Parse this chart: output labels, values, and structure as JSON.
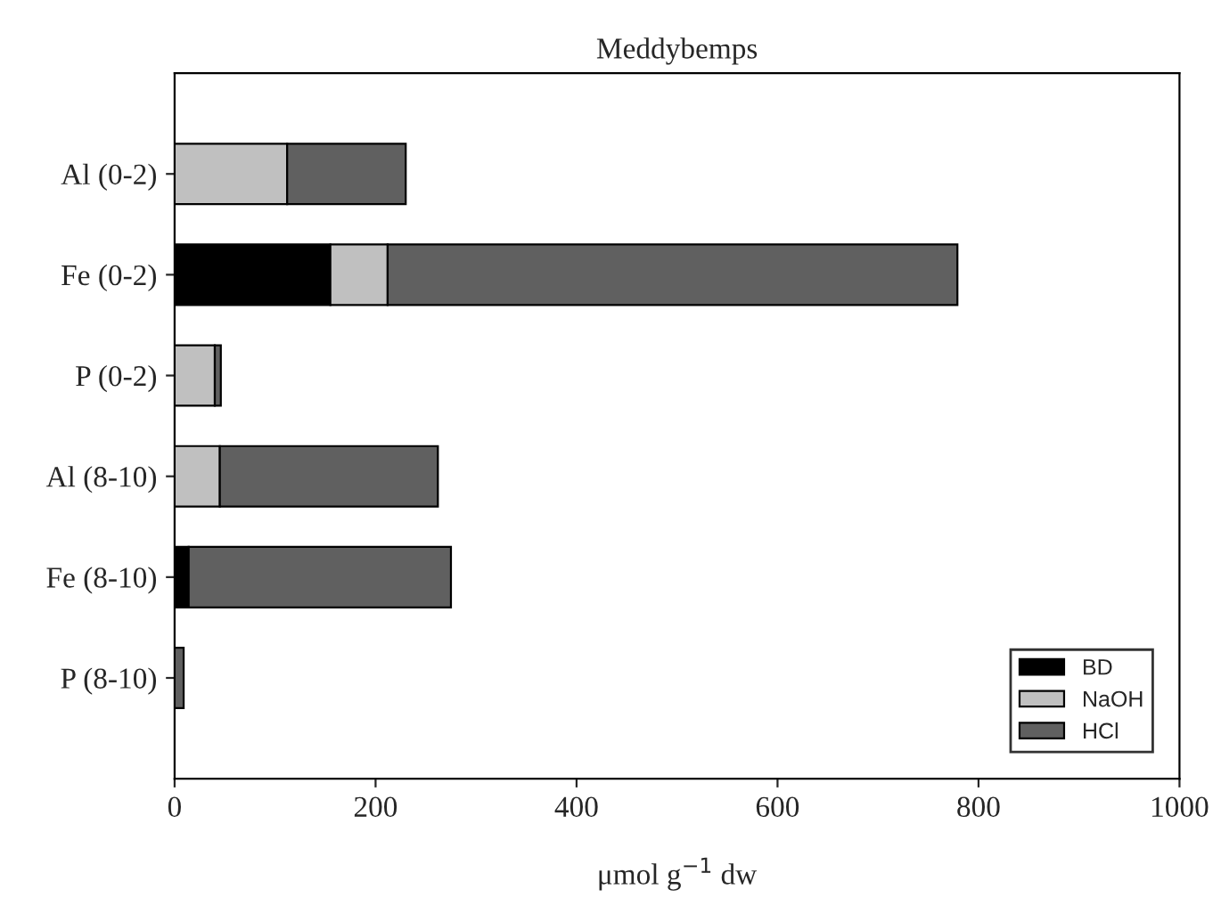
{
  "chart_data": {
    "type": "bar",
    "orientation": "horizontal",
    "stacked": true,
    "title": "Meddybemps",
    "xlabel": "μmol g$^{−1}$ dw",
    "categories": [
      "Al (0-2)",
      "Fe (0-2)",
      "P (0-2)",
      "Al (8-10)",
      "Fe (8-10)",
      "P (8-10)"
    ],
    "series": [
      {
        "name": "BD",
        "color": "#000000",
        "values": [
          null,
          155,
          null,
          null,
          14,
          null
        ]
      },
      {
        "name": "NaOH",
        "color": "#c0c0c0",
        "values": [
          112,
          57,
          40,
          45,
          0,
          0
        ]
      },
      {
        "name": "HCl",
        "color": "#606060",
        "values": [
          118,
          567,
          6,
          217,
          261,
          9
        ]
      }
    ],
    "xlim": [
      0,
      1000
    ],
    "xticks": [
      0,
      200,
      400,
      600,
      800,
      1000
    ],
    "grid": false,
    "legend": "bottom right"
  }
}
